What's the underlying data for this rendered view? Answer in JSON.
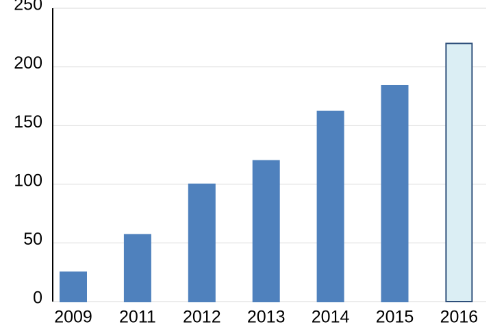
{
  "chart_data": {
    "type": "bar",
    "categories": [
      "2009",
      "2011",
      "2012",
      "2013",
      "2014",
      "2015",
      "2016"
    ],
    "values": [
      25,
      57,
      100,
      120,
      162,
      184,
      220
    ],
    "colors": [
      "#4f81bd",
      "#4f81bd",
      "#4f81bd",
      "#4f81bd",
      "#4f81bd",
      "#4f81bd",
      "#dbeef4"
    ],
    "edgecolors": [
      "#4f81bd",
      "#4f81bd",
      "#4f81bd",
      "#4f81bd",
      "#4f81bd",
      "#4f81bd",
      "#2e4f7a"
    ],
    "ylim": [
      0,
      250
    ],
    "yticks": [
      0,
      50,
      100,
      150,
      200,
      250
    ],
    "grid": true
  }
}
